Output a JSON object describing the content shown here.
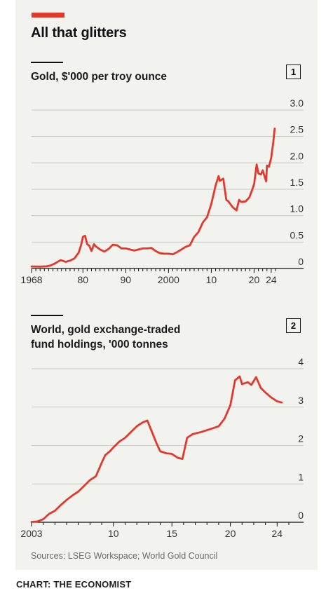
{
  "title": "All that glitters",
  "colors": {
    "accent": "#e3382b",
    "panel": "#f2f2ee",
    "grid": "#bcbcb6"
  },
  "source": "Sources: LSEG Workspace; World Gold Council",
  "credit": "CHART: THE ECONOMIST",
  "chart_data": [
    {
      "type": "line",
      "badge": "1",
      "title": "Gold, $'000 per troy ounce",
      "xlabel": "",
      "ylabel": "",
      "xlim": [
        1968,
        2025
      ],
      "ylim": [
        0,
        3.0
      ],
      "grid": true,
      "y_ticks": [
        0,
        0.5,
        1.0,
        1.5,
        2.0,
        2.5,
        3.0
      ],
      "y_tick_labels": [
        "0",
        "0.5",
        "1.0",
        "1.5",
        "2.0",
        "2.5",
        "3.0"
      ],
      "x_tick_labels": [
        {
          "x": 1968,
          "label": "1968"
        },
        {
          "x": 1980,
          "label": "80"
        },
        {
          "x": 1990,
          "label": "90"
        },
        {
          "x": 2000,
          "label": "2000"
        },
        {
          "x": 2010,
          "label": "10"
        },
        {
          "x": 2020,
          "label": "20"
        },
        {
          "x": 2024,
          "label": "24"
        }
      ],
      "series": [
        {
          "x": [
            1968,
            1970,
            1971.5,
            1972.5,
            1973.5,
            1974.8,
            1976,
            1977,
            1978,
            1979,
            1979.6,
            1980,
            1980.5,
            1981,
            1981.5,
            1982,
            1982.6,
            1983,
            1984,
            1985,
            1986,
            1987,
            1988,
            1989,
            1990,
            1991,
            1992,
            1993,
            1994,
            1995,
            1996,
            1997,
            1998,
            1999,
            2000,
            2001,
            2002,
            2003,
            2004,
            2005,
            2006,
            2007,
            2008,
            2009,
            2010,
            2011,
            2011.7,
            2012,
            2012.8,
            2013.5,
            2014,
            2015,
            2015.9,
            2016.5,
            2017,
            2018,
            2018.9,
            2019.6,
            2020,
            2020.6,
            2021,
            2021.6,
            2022,
            2022.8,
            2023,
            2023.5,
            2024,
            2024.5,
            2024.8
          ],
          "values": [
            0.039,
            0.036,
            0.041,
            0.058,
            0.097,
            0.16,
            0.125,
            0.15,
            0.19,
            0.3,
            0.45,
            0.6,
            0.62,
            0.46,
            0.43,
            0.33,
            0.46,
            0.42,
            0.36,
            0.32,
            0.37,
            0.45,
            0.44,
            0.38,
            0.38,
            0.36,
            0.34,
            0.36,
            0.38,
            0.38,
            0.39,
            0.33,
            0.29,
            0.28,
            0.28,
            0.27,
            0.31,
            0.36,
            0.41,
            0.44,
            0.6,
            0.69,
            0.87,
            0.97,
            1.22,
            1.57,
            1.75,
            1.66,
            1.7,
            1.3,
            1.27,
            1.16,
            1.1,
            1.3,
            1.26,
            1.27,
            1.35,
            1.5,
            1.6,
            1.97,
            1.8,
            1.78,
            1.86,
            1.65,
            1.95,
            1.93,
            2.1,
            2.4,
            2.65
          ]
        }
      ]
    },
    {
      "type": "line",
      "badge": "2",
      "title_lines": [
        "World, gold exchange-traded",
        "fund holdings, '000 tonnes"
      ],
      "xlabel": "",
      "ylabel": "",
      "xlim": [
        2003,
        2025
      ],
      "ylim": [
        0,
        4
      ],
      "grid": true,
      "y_ticks": [
        0,
        1,
        2,
        3,
        4
      ],
      "y_tick_labels": [
        "0",
        "1",
        "2",
        "3",
        "4"
      ],
      "x_tick_labels": [
        {
          "x": 2003,
          "label": "2003"
        },
        {
          "x": 2010,
          "label": "10"
        },
        {
          "x": 2015,
          "label": "15"
        },
        {
          "x": 2020,
          "label": "20"
        },
        {
          "x": 2024,
          "label": "24"
        }
      ],
      "series": [
        {
          "x": [
            2003,
            2003.5,
            2004,
            2004.5,
            2005,
            2005.5,
            2006,
            2006.5,
            2007,
            2007.5,
            2008,
            2008.5,
            2009,
            2009.3,
            2009.7,
            2010,
            2010.5,
            2011,
            2011.5,
            2012,
            2012.5,
            2012.9,
            2013.3,
            2013.7,
            2014,
            2014.5,
            2015,
            2015.5,
            2015.9,
            2016.3,
            2016.8,
            2017.5,
            2018,
            2018.5,
            2019,
            2019.5,
            2020,
            2020.4,
            2020.8,
            2021,
            2021.5,
            2021.8,
            2022.2,
            2022.6,
            2023,
            2023.5,
            2024,
            2024.4
          ],
          "values": [
            0.01,
            0.02,
            0.08,
            0.22,
            0.3,
            0.45,
            0.58,
            0.7,
            0.8,
            0.95,
            1.1,
            1.2,
            1.55,
            1.75,
            1.85,
            1.95,
            2.1,
            2.2,
            2.35,
            2.5,
            2.6,
            2.65,
            2.35,
            2.05,
            1.85,
            1.8,
            1.78,
            1.68,
            1.65,
            2.2,
            2.3,
            2.35,
            2.4,
            2.45,
            2.5,
            2.7,
            3.05,
            3.7,
            3.8,
            3.6,
            3.65,
            3.58,
            3.78,
            3.5,
            3.38,
            3.25,
            3.15,
            3.12
          ]
        }
      ]
    }
  ]
}
